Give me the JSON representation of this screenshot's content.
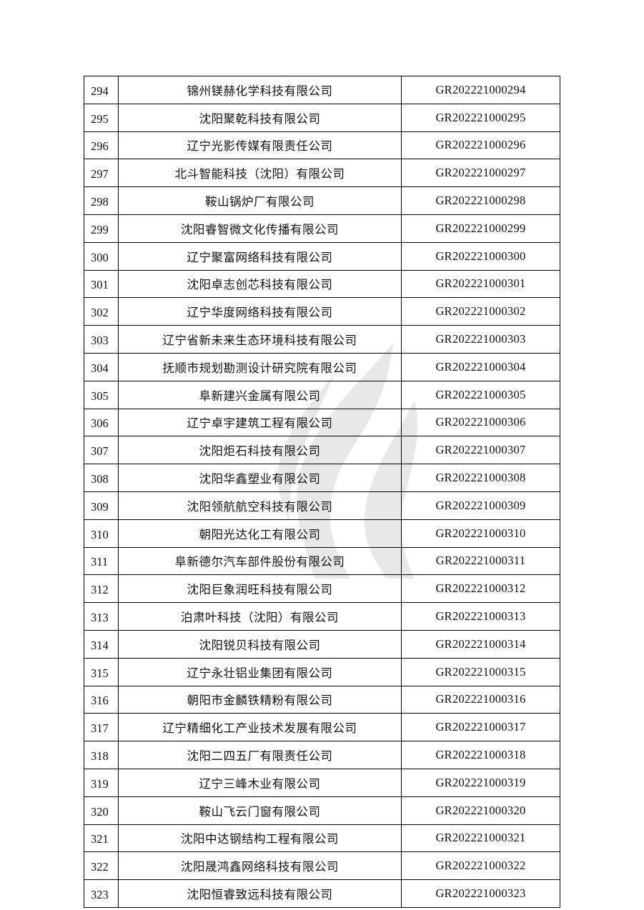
{
  "rows": [
    {
      "no": "294",
      "name": "锦州镁赫化学科技有限公司",
      "code": "GR202221000294"
    },
    {
      "no": "295",
      "name": "沈阳聚乾科技有限公司",
      "code": "GR202221000295"
    },
    {
      "no": "296",
      "name": "辽宁光影传媒有限责任公司",
      "code": "GR202221000296"
    },
    {
      "no": "297",
      "name": "北斗智能科技（沈阳）有限公司",
      "code": "GR202221000297"
    },
    {
      "no": "298",
      "name": "鞍山锅炉厂有限公司",
      "code": "GR202221000298"
    },
    {
      "no": "299",
      "name": "沈阳睿智微文化传播有限公司",
      "code": "GR202221000299"
    },
    {
      "no": "300",
      "name": "辽宁聚富网络科技有限公司",
      "code": "GR202221000300"
    },
    {
      "no": "301",
      "name": "沈阳卓志创芯科技有限公司",
      "code": "GR202221000301"
    },
    {
      "no": "302",
      "name": "辽宁华度网络科技有限公司",
      "code": "GR202221000302"
    },
    {
      "no": "303",
      "name": "辽宁省新未来生态环境科技有限公司",
      "code": "GR202221000303"
    },
    {
      "no": "304",
      "name": "抚顺市规划勘测设计研究院有限公司",
      "code": "GR202221000304"
    },
    {
      "no": "305",
      "name": "阜新建兴金属有限公司",
      "code": "GR202221000305"
    },
    {
      "no": "306",
      "name": "辽宁卓宇建筑工程有限公司",
      "code": "GR202221000306"
    },
    {
      "no": "307",
      "name": "沈阳炬石科技有限公司",
      "code": "GR202221000307"
    },
    {
      "no": "308",
      "name": "沈阳华鑫塑业有限公司",
      "code": "GR202221000308"
    },
    {
      "no": "309",
      "name": "沈阳领航航空科技有限公司",
      "code": "GR202221000309"
    },
    {
      "no": "310",
      "name": "朝阳光达化工有限公司",
      "code": "GR202221000310"
    },
    {
      "no": "311",
      "name": "阜新德尔汽车部件股份有限公司",
      "code": "GR202221000311"
    },
    {
      "no": "312",
      "name": "沈阳巨象润旺科技有限公司",
      "code": "GR202221000312"
    },
    {
      "no": "313",
      "name": "泊肃叶科技（沈阳）有限公司",
      "code": "GR202221000313"
    },
    {
      "no": "314",
      "name": "沈阳锐贝科技有限公司",
      "code": "GR202221000314"
    },
    {
      "no": "315",
      "name": "辽宁永壮铝业集团有限公司",
      "code": "GR202221000315"
    },
    {
      "no": "316",
      "name": "朝阳市金麟铁精粉有限公司",
      "code": "GR202221000316"
    },
    {
      "no": "317",
      "name": "辽宁精细化工产业技术发展有限公司",
      "code": "GR202221000317"
    },
    {
      "no": "318",
      "name": "沈阳二四五厂有限责任公司",
      "code": "GR202221000318"
    },
    {
      "no": "319",
      "name": "辽宁三峰木业有限公司",
      "code": "GR202221000319"
    },
    {
      "no": "320",
      "name": "鞍山飞云门窗有限公司",
      "code": "GR202221000320"
    },
    {
      "no": "321",
      "name": "沈阳中达钢结构工程有限公司",
      "code": "GR202221000321"
    },
    {
      "no": "322",
      "name": "沈阳晟鸿鑫网络科技有限公司",
      "code": "GR202221000322"
    },
    {
      "no": "323",
      "name": "沈阳恒睿致远科技有限公司",
      "code": "GR202221000323"
    }
  ]
}
